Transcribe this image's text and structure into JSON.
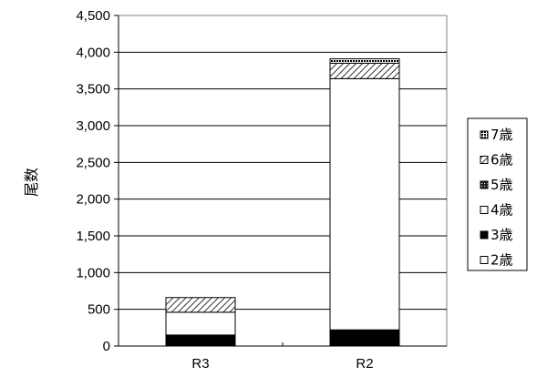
{
  "chart_data": {
    "type": "bar",
    "stacked": true,
    "categories": [
      "R3",
      "R2"
    ],
    "series": [
      {
        "name": "2歳",
        "values": [
          0,
          0
        ],
        "color": "#ffffff",
        "pattern": "white"
      },
      {
        "name": "3歳",
        "values": [
          150,
          220
        ],
        "color": "#000000",
        "pattern": "solid"
      },
      {
        "name": "4歳",
        "values": [
          310,
          3420
        ],
        "color": "#ffffff",
        "pattern": "white"
      },
      {
        "name": "5歳",
        "values": [
          0,
          0
        ],
        "color": "#ffffff",
        "pattern": "dense-grid"
      },
      {
        "name": "6歳",
        "values": [
          200,
          210
        ],
        "color": "#ffffff",
        "pattern": "diagonal"
      },
      {
        "name": "7歳",
        "values": [
          0,
          60
        ],
        "color": "#ffffff",
        "pattern": "dots"
      }
    ],
    "title": "",
    "xlabel": "",
    "ylabel": "尾数",
    "ylim": [
      0,
      4500
    ],
    "yticks": [
      0,
      500,
      1000,
      1500,
      2000,
      2500,
      3000,
      3500,
      4000,
      4500
    ],
    "ytick_labels": [
      "0",
      "500",
      "1,000",
      "1,500",
      "2,000",
      "2,500",
      "3,000",
      "3,500",
      "4,000",
      "4,500"
    ],
    "grid": true,
    "legend_position": "right",
    "legend_order": [
      "7歳",
      "6歳",
      "5歳",
      "4歳",
      "3歳",
      "2歳"
    ]
  }
}
